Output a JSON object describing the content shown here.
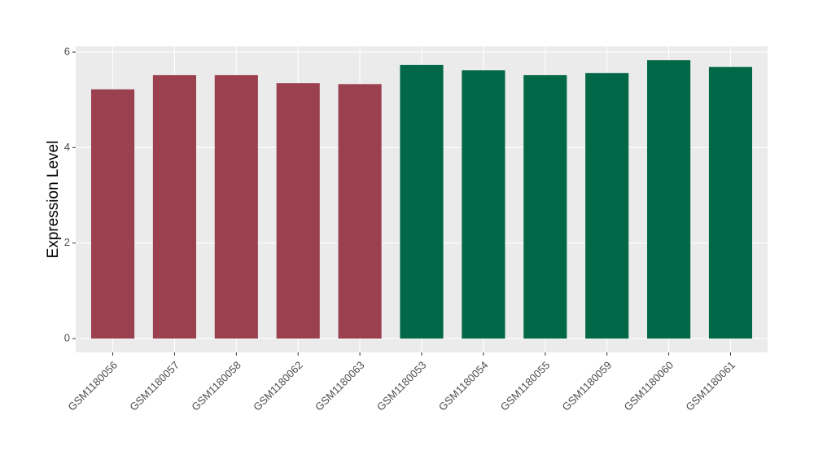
{
  "chart_data": {
    "type": "bar",
    "y_label": "Expression Level",
    "categories": [
      "GSM1180056",
      "GSM1180057",
      "GSM1180058",
      "GSM1180062",
      "GSM1180063",
      "GSM1180053",
      "GSM1180054",
      "GSM1180055",
      "GSM1180059",
      "GSM1180060",
      "GSM1180061"
    ],
    "values": [
      5.22,
      5.52,
      5.52,
      5.35,
      5.33,
      5.73,
      5.62,
      5.52,
      5.56,
      5.83,
      5.69
    ],
    "colors": [
      "#9a404f",
      "#9a404f",
      "#9a404f",
      "#9a404f",
      "#9a404f",
      "#006846",
      "#006846",
      "#006846",
      "#006846",
      "#006846",
      "#006846"
    ],
    "ylim": [
      -0.29,
      6.12
    ],
    "yticks": [
      0,
      2,
      4,
      6
    ],
    "grid": true
  }
}
